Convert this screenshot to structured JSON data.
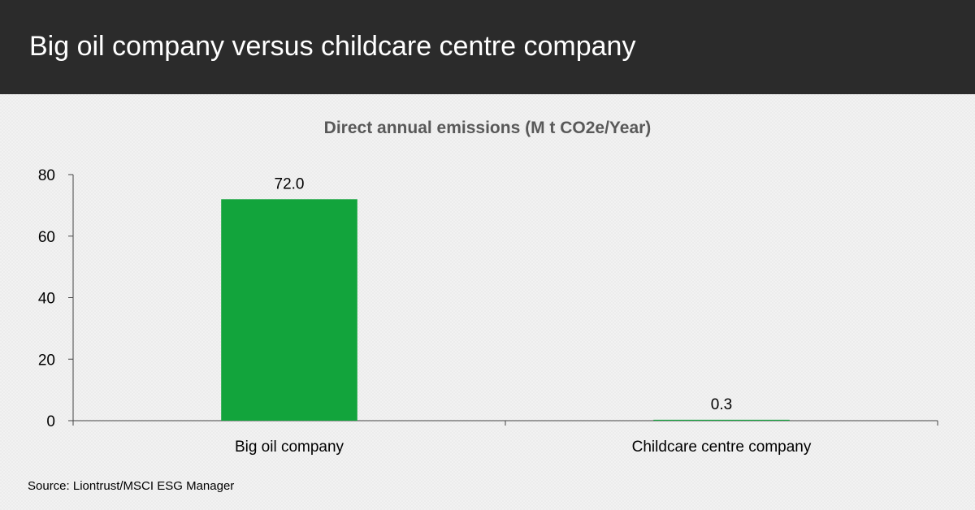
{
  "header": {
    "title": "Big oil company versus childcare centre company"
  },
  "source": "Source: Liontrust/MSCI ESG Manager",
  "colors": {
    "header_bg": "#2b2b2b",
    "bar": "#12a43c",
    "axis": "#444444",
    "title_text": "#595959"
  },
  "chart_data": {
    "type": "bar",
    "title": "Direct annual emissions (M t CO2e/Year)",
    "categories": [
      "Big oil company",
      "Childcare centre company"
    ],
    "values": [
      72.0,
      0.3
    ],
    "data_labels": [
      "72.0",
      "0.3"
    ],
    "ylim": [
      0,
      80
    ],
    "yticks": [
      0,
      20,
      40,
      60,
      80
    ],
    "grid": false,
    "legend": "none"
  }
}
